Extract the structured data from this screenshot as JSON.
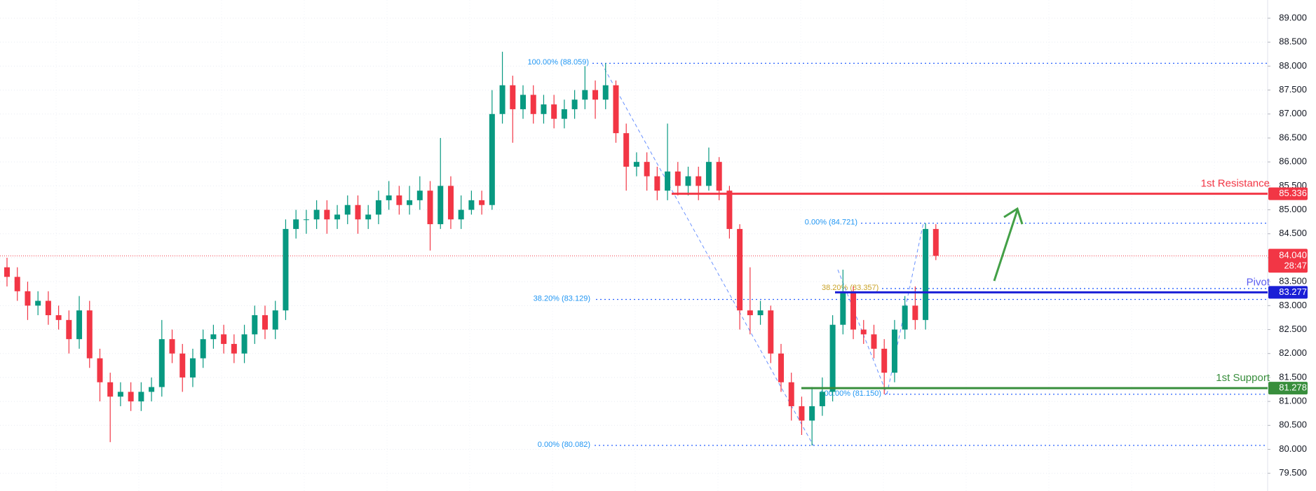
{
  "chart_data": {
    "type": "candlestick",
    "up_color": "#089981",
    "down_color": "#f23645",
    "open": [
      83.8,
      83.6,
      83.3,
      83.0,
      83.1,
      82.8,
      82.7,
      82.3,
      82.9,
      81.9,
      81.4,
      81.1,
      81.2,
      81.0,
      81.2,
      81.3,
      82.3,
      82.0,
      81.5,
      81.9,
      82.3,
      82.4,
      82.2,
      82.0,
      82.4,
      82.8,
      82.5,
      82.9,
      84.6,
      84.8,
      84.8,
      85.0,
      84.8,
      84.9,
      85.1,
      84.8,
      84.9,
      85.2,
      85.3,
      85.1,
      85.2,
      85.4,
      84.7,
      85.5,
      84.8,
      85.0,
      85.2,
      85.1,
      87.0,
      87.6,
      87.1,
      87.4,
      87.0,
      87.2,
      86.9,
      87.1,
      87.3,
      87.5,
      87.3,
      87.6,
      86.6,
      85.9,
      86.0,
      85.7,
      85.4,
      85.8,
      85.5,
      85.7,
      85.5,
      86.0,
      85.4,
      84.6,
      82.9,
      82.8,
      82.9,
      82.0,
      81.4,
      80.9,
      80.6,
      80.9,
      81.2,
      82.6,
      83.3,
      82.5,
      82.4,
      82.1,
      81.6,
      82.5,
      83.0,
      82.7,
      84.6
    ],
    "high": [
      84.0,
      83.8,
      83.5,
      83.3,
      83.3,
      83.0,
      82.9,
      83.2,
      83.1,
      82.1,
      81.6,
      81.4,
      81.4,
      81.4,
      81.5,
      82.7,
      82.5,
      82.2,
      82.1,
      82.5,
      82.6,
      82.6,
      82.4,
      82.6,
      83.0,
      83.0,
      83.1,
      84.8,
      85.0,
      85.0,
      85.2,
      85.2,
      85.1,
      85.3,
      85.3,
      85.1,
      85.4,
      85.6,
      85.5,
      85.5,
      85.7,
      85.6,
      86.5,
      85.7,
      85.3,
      85.4,
      85.4,
      87.5,
      88.3,
      87.8,
      87.6,
      87.6,
      87.4,
      87.4,
      87.3,
      87.5,
      88.0,
      87.7,
      88.06,
      87.7,
      86.8,
      86.2,
      86.2,
      85.9,
      86.8,
      86.0,
      85.9,
      85.9,
      86.3,
      86.1,
      85.5,
      84.7,
      83.8,
      83.1,
      83.0,
      82.2,
      81.6,
      81.1,
      81.3,
      81.5,
      82.8,
      83.75,
      83.4,
      82.7,
      82.6,
      82.3,
      82.7,
      83.2,
      83.4,
      84.72,
      84.7
    ],
    "low": [
      83.4,
      83.1,
      82.7,
      82.8,
      82.6,
      82.5,
      82.0,
      82.1,
      81.7,
      81.0,
      80.15,
      80.9,
      80.8,
      80.8,
      81.0,
      81.1,
      81.8,
      81.2,
      81.3,
      81.7,
      82.1,
      82.0,
      81.8,
      81.8,
      82.2,
      82.3,
      82.3,
      82.7,
      84.4,
      84.5,
      84.6,
      84.5,
      84.6,
      84.7,
      84.5,
      84.6,
      84.7,
      85.0,
      84.9,
      84.9,
      85.0,
      84.15,
      84.6,
      84.6,
      84.6,
      84.9,
      84.9,
      85.0,
      86.8,
      86.4,
      86.9,
      86.8,
      86.8,
      86.7,
      86.7,
      86.9,
      87.1,
      86.9,
      87.1,
      86.4,
      85.4,
      85.7,
      85.4,
      85.2,
      85.2,
      85.3,
      85.3,
      85.2,
      85.4,
      85.2,
      84.4,
      82.5,
      82.4,
      82.6,
      81.8,
      81.2,
      80.6,
      80.3,
      80.08,
      80.7,
      81.0,
      82.4,
      82.3,
      82.2,
      81.9,
      81.15,
      81.4,
      82.3,
      82.5,
      82.5,
      83.95
    ],
    "close": [
      83.6,
      83.3,
      83.0,
      83.1,
      82.8,
      82.7,
      82.3,
      82.9,
      81.9,
      81.4,
      81.1,
      81.2,
      81.0,
      81.2,
      81.3,
      82.3,
      82.0,
      81.5,
      81.9,
      82.3,
      82.4,
      82.2,
      82.0,
      82.4,
      82.8,
      82.5,
      82.9,
      84.6,
      84.8,
      84.8,
      85.0,
      84.8,
      84.9,
      85.1,
      84.8,
      84.9,
      85.2,
      85.3,
      85.1,
      85.2,
      85.4,
      84.7,
      85.5,
      84.8,
      85.0,
      85.2,
      85.1,
      87.0,
      87.6,
      87.1,
      87.4,
      87.0,
      87.2,
      86.9,
      87.1,
      87.3,
      87.5,
      87.3,
      87.6,
      86.6,
      85.9,
      86.0,
      85.7,
      85.4,
      85.8,
      85.5,
      85.7,
      85.5,
      86.0,
      85.4,
      84.6,
      82.9,
      82.8,
      82.9,
      82.0,
      81.4,
      80.9,
      80.6,
      80.9,
      81.2,
      82.6,
      83.3,
      82.5,
      82.4,
      82.1,
      81.6,
      82.5,
      83.0,
      82.7,
      84.6,
      84.04
    ],
    "ylim": [
      79.13,
      89.38
    ],
    "yticks": [
      {
        "value": 79.5,
        "label": "79.500"
      },
      {
        "value": 80,
        "label": "80.000"
      },
      {
        "value": 80.5,
        "label": "80.500"
      },
      {
        "value": 81,
        "label": "81.000"
      },
      {
        "value": 81.5,
        "label": "81.500"
      },
      {
        "value": 82,
        "label": "82.000"
      },
      {
        "value": 82.5,
        "label": "82.500"
      },
      {
        "value": 83,
        "label": "83.000"
      },
      {
        "value": 83.5,
        "label": "83.500"
      },
      {
        "value": 84,
        "label": "84.000"
      },
      {
        "value": 84.5,
        "label": "84.500"
      },
      {
        "value": 85,
        "label": "85.000"
      },
      {
        "value": 85.5,
        "label": "85.500"
      },
      {
        "value": 86,
        "label": "86.000"
      },
      {
        "value": 86.5,
        "label": "86.500"
      },
      {
        "value": 87,
        "label": "87.000"
      },
      {
        "value": 87.5,
        "label": "87.500"
      },
      {
        "value": 88,
        "label": "88.000"
      },
      {
        "value": 88.5,
        "label": "88.500"
      },
      {
        "value": 89,
        "label": "89.000"
      }
    ],
    "grid": true,
    "levels": [
      {
        "name": "1st Resistance",
        "value": 85.336,
        "color": "#f23645"
      },
      {
        "name": "Pivot",
        "value": 83.277,
        "color": "#1a1fd6"
      },
      {
        "name": "1st Support",
        "value": 81.278,
        "color": "#388e3c"
      }
    ],
    "fibonacci": [
      {
        "label": "100.00% (88.059)",
        "value": 88.059
      },
      {
        "label": "0.00% (80.082)",
        "value": 80.082
      },
      {
        "label": "38.20% (83.129)",
        "value": 83.129
      },
      {
        "label": "0.00% (84.721)",
        "value": 84.721
      },
      {
        "label": "38.20% (83.357)",
        "value": 83.357
      },
      {
        "label": "100.00% (81.150)",
        "value": 81.15
      }
    ],
    "last_price": {
      "value": 84.04,
      "label": "84.040",
      "countdown": "28:47",
      "color": "#f23645"
    }
  }
}
